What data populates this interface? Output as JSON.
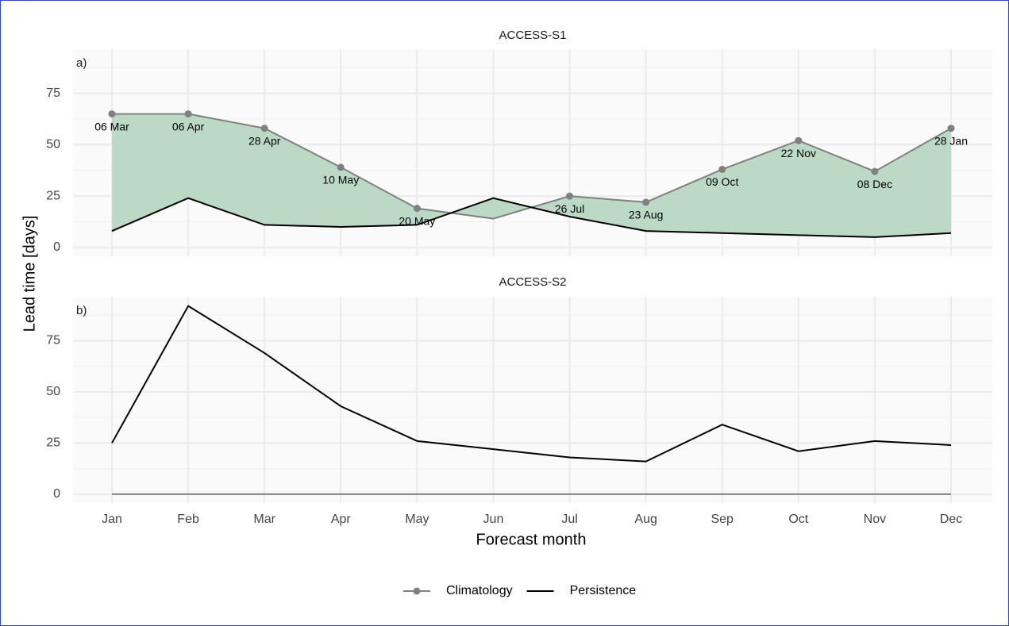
{
  "x_label": "Forecast month",
  "y_label": "Lead time [days]",
  "legend_position": "bottom",
  "chart_data": [
    {
      "type": "line",
      "title": "ACCESS-S1",
      "panel_label": "a)",
      "categories": [
        "Jan",
        "Feb",
        "Mar",
        "Apr",
        "May",
        "Jun",
        "Jul",
        "Aug",
        "Sep",
        "Oct",
        "Nov",
        "Dec"
      ],
      "ylim": [
        -4.3,
        96.5
      ],
      "yticks": [
        0,
        25,
        50,
        75
      ],
      "grid": true,
      "fill_between": true,
      "fill_color": "#bcd9c6",
      "series": [
        {
          "name": "Climatology",
          "color": "#808080",
          "values": [
            65,
            65,
            58,
            39,
            19,
            14,
            25,
            22,
            38,
            52,
            37,
            58
          ],
          "point_labels": [
            "06 Mar",
            "06 Apr",
            "28 Apr",
            "10 May",
            "20 May",
            null,
            "26 Jul",
            "23 Aug",
            "09 Oct",
            "22 Nov",
            "08 Dec",
            "28 Jan"
          ]
        },
        {
          "name": "Persistence",
          "color": "#000000",
          "values": [
            8,
            24,
            11,
            10,
            11,
            24,
            15,
            8,
            7,
            6,
            5,
            7
          ]
        }
      ]
    },
    {
      "type": "line",
      "title": "ACCESS-S2",
      "panel_label": "b)",
      "categories": [
        "Jan",
        "Feb",
        "Mar",
        "Apr",
        "May",
        "Jun",
        "Jul",
        "Aug",
        "Sep",
        "Oct",
        "Nov",
        "Dec"
      ],
      "ylim": [
        -4.3,
        96.5
      ],
      "yticks": [
        0,
        25,
        50,
        75
      ],
      "grid": true,
      "series": [
        {
          "name": "Climatology",
          "color": "#808080",
          "values": [
            0,
            0,
            0,
            0,
            0,
            0,
            0,
            0,
            0,
            0,
            0,
            0
          ]
        },
        {
          "name": "Persistence",
          "color": "#000000",
          "values": [
            25,
            92,
            69,
            43,
            26,
            22,
            18,
            16,
            34,
            21,
            26,
            24
          ]
        }
      ]
    }
  ]
}
